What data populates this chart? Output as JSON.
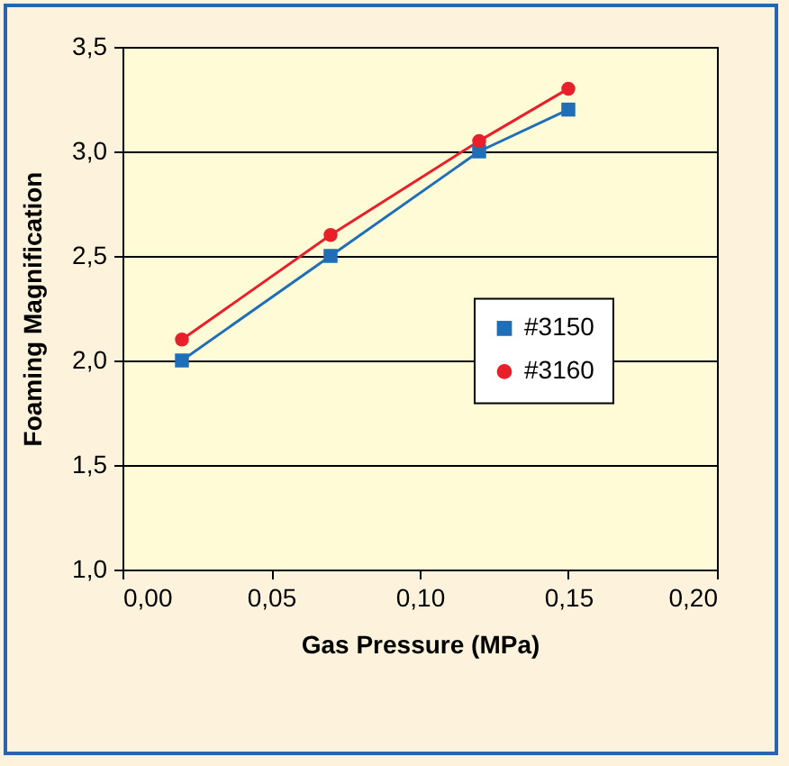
{
  "chart_data": {
    "type": "line",
    "xlabel": "Gas Pressure (MPa)",
    "ylabel": "Foaming Magnification",
    "series": [
      {
        "name": "#3150",
        "color": "#1f6fb8",
        "marker": "square",
        "x": [
          0.02,
          0.07,
          0.12,
          0.15
        ],
        "values": [
          2.0,
          2.5,
          3.0,
          3.2
        ]
      },
      {
        "name": "#3160",
        "color": "#e8202a",
        "marker": "circle",
        "x": [
          0.02,
          0.07,
          0.12,
          0.15
        ],
        "values": [
          2.1,
          2.6,
          3.05,
          3.3
        ]
      }
    ],
    "xlim": [
      0,
      0.2
    ],
    "xticks": [
      {
        "value": 0,
        "label": "0,00"
      },
      {
        "value": 0.05,
        "label": "0,05"
      },
      {
        "value": 0.1,
        "label": "0,10"
      },
      {
        "value": 0.15,
        "label": "0,15"
      },
      {
        "value": 0.2,
        "label": "0,20"
      }
    ],
    "ylim": [
      1,
      3.5
    ],
    "yticks": [
      {
        "value": 1,
        "label": "1,0"
      },
      {
        "value": 1.5,
        "label": "1,5"
      },
      {
        "value": 2,
        "label": "2,0"
      },
      {
        "value": 2.5,
        "label": "2,5"
      },
      {
        "value": 3,
        "label": "3,0"
      },
      {
        "value": 3.5,
        "label": "3,5"
      }
    ],
    "grid": "y",
    "legend": "right",
    "line_style": "solid"
  }
}
